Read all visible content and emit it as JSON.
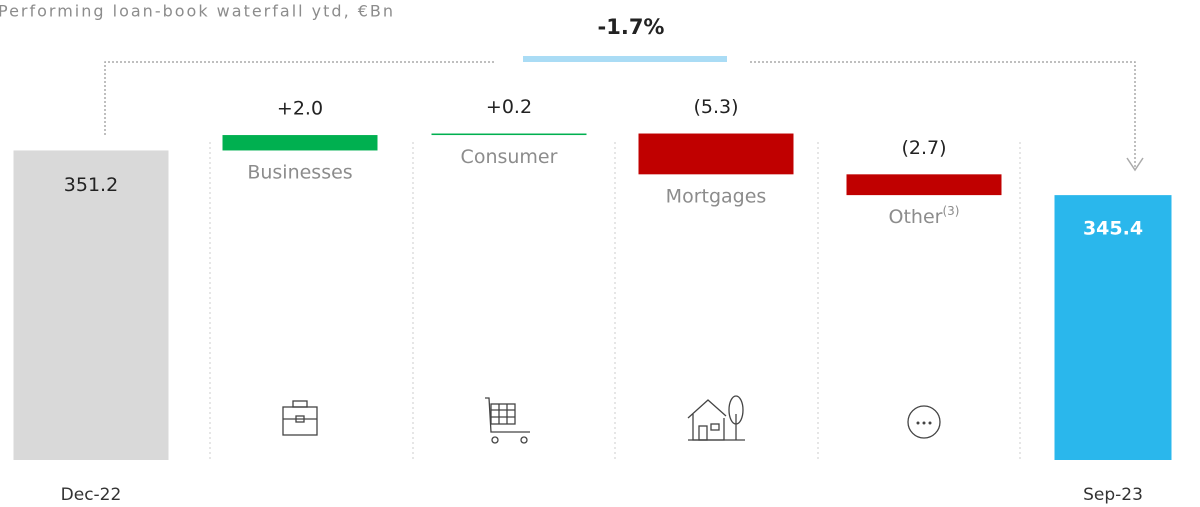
{
  "chart_data": {
    "type": "waterfall",
    "title": "Performing loan-book waterfall ytd, €Bn",
    "annotation": "-1.7%",
    "categories": [
      "Dec-22",
      "Businesses",
      "Consumer",
      "Mortgages",
      "Other",
      "Sep-23"
    ],
    "footnotes": {
      "4": "(3)"
    },
    "values": [
      351.2,
      2.0,
      0.2,
      -5.3,
      -2.7,
      345.4
    ],
    "value_labels": [
      "351.2",
      "+2.0",
      "+0.2",
      "(5.3)",
      "(2.7)",
      "345.4"
    ],
    "measures": [
      "total",
      "relative",
      "relative",
      "relative",
      "relative",
      "total"
    ],
    "colors": [
      "#d9d9d9",
      "#00b050",
      "#00b050",
      "#c00000",
      "#c00000",
      "#2ab7ec"
    ],
    "ylim": [
      311,
      357
    ]
  }
}
